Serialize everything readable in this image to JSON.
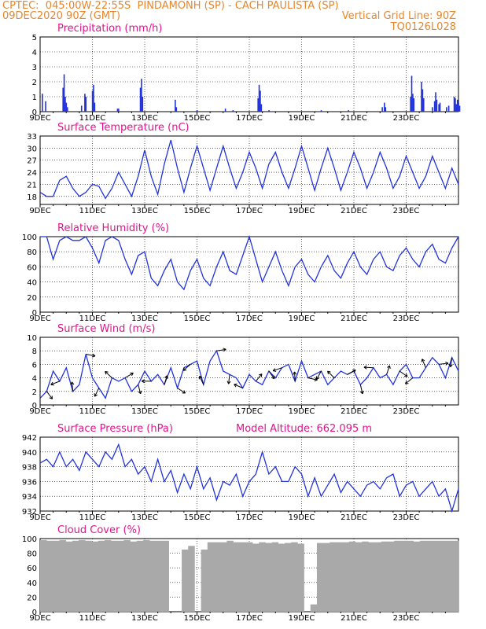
{
  "header": {
    "line1": "CPTEC:  045:00W-22:55S  PINDAMONH (SP) - CACH PAULISTA (SP)",
    "line2": "09DEC2020 90Z (GMT)",
    "grid_note": "Vertical Grid Line: 90Z",
    "code": "TQ0126L028"
  },
  "colors": {
    "header": "#e8862a",
    "title": "#e0148c",
    "line": "#2233dd",
    "cloud": "#a9a9a9"
  },
  "chart_data": [
    {
      "id": "precip",
      "type": "bar",
      "title": "Precipitation (mm/h)",
      "ylim": [
        0,
        5
      ],
      "yticks": [
        "0",
        "1",
        "2",
        "3",
        "4",
        "5"
      ],
      "xticks": [
        "9DEC",
        "11DEC",
        "13DEC",
        "15DEC",
        "17DEC",
        "19DEC",
        "21DEC",
        "23DEC"
      ],
      "x_range_hours": [
        0,
        360
      ],
      "points": [
        [
          2,
          1.2
        ],
        [
          5,
          0.7
        ],
        [
          21,
          1.6
        ],
        [
          22,
          2.5
        ],
        [
          23,
          1.0
        ],
        [
          24,
          0.6
        ],
        [
          25,
          0.3
        ],
        [
          38,
          0.4
        ],
        [
          41,
          1.2
        ],
        [
          42,
          1.0
        ],
        [
          48,
          1.4
        ],
        [
          49,
          1.8
        ],
        [
          50,
          0.6
        ],
        [
          71,
          0.2
        ],
        [
          72,
          0.2
        ],
        [
          92,
          1.6
        ],
        [
          93,
          2.2
        ],
        [
          94,
          1.0
        ],
        [
          124,
          0.8
        ],
        [
          125,
          0.3
        ],
        [
          144,
          0.1
        ],
        [
          170,
          0.2
        ],
        [
          177,
          0.1
        ],
        [
          200,
          0.9
        ],
        [
          201,
          1.8
        ],
        [
          202,
          1.4
        ],
        [
          203,
          0.5
        ],
        [
          210,
          0.1
        ],
        [
          258,
          0.1
        ],
        [
          283,
          0.1
        ],
        [
          314,
          0.3
        ],
        [
          316,
          0.6
        ],
        [
          317,
          0.3
        ],
        [
          340,
          1.0
        ],
        [
          341,
          2.4
        ],
        [
          342,
          1.2
        ],
        [
          343,
          0.9
        ],
        [
          350,
          2.0
        ],
        [
          351,
          1.5
        ],
        [
          352,
          0.9
        ],
        [
          360,
          0.3
        ],
        [
          362,
          0.7
        ],
        [
          363,
          1.3
        ],
        [
          364,
          0.8
        ],
        [
          366,
          0.5
        ],
        [
          367,
          0.6
        ],
        [
          373,
          0.3
        ],
        [
          375,
          0.4
        ],
        [
          380,
          1.0
        ],
        [
          381,
          0.9
        ],
        [
          382,
          0.5
        ],
        [
          383,
          0.8
        ],
        [
          384,
          0.6
        ],
        [
          385,
          0.4
        ]
      ]
    },
    {
      "id": "temp",
      "type": "line",
      "title": "Surface Temperature (nC)",
      "ylim": [
        16,
        33
      ],
      "ytick_values": [
        18,
        21,
        24,
        27,
        30,
        33
      ],
      "yticks": [
        "18",
        "21",
        "24",
        "27",
        "30",
        "33"
      ],
      "xticks": [
        "9DEC",
        "11DEC",
        "13DEC",
        "15DEC",
        "17DEC",
        "19DEC",
        "21DEC",
        "23DEC"
      ],
      "x": [
        0,
        6,
        12,
        18,
        24,
        30,
        36,
        42,
        48,
        54,
        60,
        66,
        72,
        78,
        84,
        90,
        96,
        102,
        108,
        114,
        120,
        126,
        132,
        138,
        144,
        150,
        156,
        162,
        168,
        174,
        180,
        186,
        192,
        198,
        204,
        210,
        216,
        222,
        228,
        234,
        240,
        246,
        252,
        258,
        264,
        270,
        276,
        282,
        288,
        294,
        300,
        306,
        312,
        318,
        324,
        330,
        336,
        342,
        348,
        354,
        360,
        366,
        372,
        378,
        384
      ],
      "y": [
        19,
        18,
        18,
        22,
        23,
        20,
        18,
        19,
        21,
        20.5,
        17.5,
        20,
        24,
        21,
        18,
        23,
        29.5,
        23,
        18.5,
        26,
        32,
        25,
        19,
        25,
        30.5,
        25,
        19.5,
        25,
        30.5,
        25,
        20,
        24,
        29,
        25,
        20,
        26,
        29,
        24,
        20,
        25,
        30.5,
        25,
        19.5,
        25,
        30,
        25,
        19.5,
        24,
        29,
        25,
        20,
        24,
        29,
        25,
        20,
        23,
        28,
        24,
        20,
        23,
        28,
        24,
        20,
        25,
        21
      ]
    },
    {
      "id": "rh",
      "type": "line",
      "title": "Relative Humidity (%)",
      "ylim": [
        0,
        100
      ],
      "yticks": [
        "0",
        "20",
        "40",
        "60",
        "80",
        "100"
      ],
      "xticks": [
        "9DEC",
        "11DEC",
        "13DEC",
        "15DEC",
        "17DEC",
        "19DEC",
        "21DEC",
        "23DEC"
      ],
      "x": [
        0,
        6,
        12,
        18,
        24,
        30,
        36,
        42,
        48,
        54,
        60,
        66,
        72,
        78,
        84,
        90,
        96,
        102,
        108,
        114,
        120,
        126,
        132,
        138,
        144,
        150,
        156,
        162,
        168,
        174,
        180,
        186,
        192,
        198,
        204,
        210,
        216,
        222,
        228,
        234,
        240,
        246,
        252,
        258,
        264,
        270,
        276,
        282,
        288,
        294,
        300,
        306,
        312,
        318,
        324,
        330,
        336,
        342,
        348,
        354,
        360,
        366,
        372,
        378,
        384
      ],
      "y": [
        100,
        100,
        70,
        95,
        100,
        95,
        95,
        100,
        85,
        65,
        95,
        100,
        95,
        70,
        50,
        75,
        80,
        45,
        35,
        55,
        70,
        40,
        30,
        55,
        70,
        45,
        35,
        60,
        80,
        55,
        50,
        75,
        100,
        70,
        40,
        60,
        80,
        55,
        35,
        60,
        70,
        50,
        40,
        60,
        75,
        55,
        45,
        65,
        80,
        60,
        50,
        70,
        80,
        60,
        55,
        75,
        85,
        70,
        60,
        80,
        90,
        70,
        65,
        85,
        100
      ]
    },
    {
      "id": "wind",
      "type": "line",
      "title": "Surface Wind (m/s)",
      "ylim": [
        0,
        10
      ],
      "yticks": [
        "0",
        "2",
        "4",
        "6",
        "8",
        "10"
      ],
      "xticks": [
        "9DEC",
        "11DEC",
        "13DEC",
        "15DEC",
        "17DEC",
        "19DEC",
        "21DEC",
        "23DEC"
      ],
      "x": [
        0,
        6,
        12,
        18,
        24,
        30,
        36,
        42,
        48,
        54,
        60,
        66,
        72,
        78,
        84,
        90,
        96,
        102,
        108,
        114,
        120,
        126,
        132,
        138,
        144,
        150,
        156,
        162,
        168,
        174,
        180,
        186,
        192,
        198,
        204,
        210,
        216,
        222,
        228,
        234,
        240,
        246,
        252,
        258,
        264,
        270,
        276,
        282,
        288,
        294,
        300,
        306,
        312,
        318,
        324,
        330,
        336,
        342,
        348,
        354,
        360,
        366,
        372,
        378,
        384
      ],
      "y": [
        1,
        2,
        5,
        3.5,
        5.5,
        2,
        3,
        7.5,
        4,
        2.5,
        1,
        4,
        3.5,
        4,
        2,
        3,
        5,
        3.5,
        4.5,
        3,
        5.5,
        2.5,
        5.5,
        6,
        6.5,
        3,
        6.5,
        8,
        5,
        4.5,
        4,
        2.5,
        4.5,
        3.5,
        3,
        5,
        4,
        5.5,
        6,
        3.5,
        6.5,
        4,
        4.5,
        5,
        3,
        4,
        5,
        4.5,
        5,
        3,
        4,
        5.5,
        4,
        4.5,
        3,
        5,
        6,
        4,
        4,
        5.5,
        7,
        6,
        4,
        7,
        5
      ]
    },
    {
      "id": "pres",
      "type": "line",
      "title": "Surface Pressure (hPa)",
      "annotation": "Model Altitude: 662.095 m",
      "ylim": [
        932,
        942
      ],
      "yticks": [
        "932",
        "934",
        "936",
        "938",
        "940",
        "942"
      ],
      "xticks": [
        "9DEC",
        "11DEC",
        "13DEC",
        "15DEC",
        "17DEC",
        "19DEC",
        "21DEC",
        "23DEC"
      ],
      "x": [
        0,
        6,
        12,
        18,
        24,
        30,
        36,
        42,
        48,
        54,
        60,
        66,
        72,
        78,
        84,
        90,
        96,
        102,
        108,
        114,
        120,
        126,
        132,
        138,
        144,
        150,
        156,
        162,
        168,
        174,
        180,
        186,
        192,
        198,
        204,
        210,
        216,
        222,
        228,
        234,
        240,
        246,
        252,
        258,
        264,
        270,
        276,
        282,
        288,
        294,
        300,
        306,
        312,
        318,
        324,
        330,
        336,
        342,
        348,
        354,
        360,
        366,
        372,
        378,
        384
      ],
      "y": [
        938.5,
        939,
        938,
        940,
        938,
        939,
        937.5,
        940,
        939,
        938,
        940,
        939,
        941,
        938,
        939,
        937,
        938,
        936,
        939,
        936,
        937.5,
        934.5,
        937,
        935,
        938,
        935,
        936.5,
        933.5,
        936,
        935.5,
        937,
        934,
        936,
        937,
        940,
        937,
        938,
        936,
        936,
        938,
        937,
        934,
        936.5,
        934,
        935.5,
        937,
        934.5,
        936,
        935,
        934,
        935.5,
        936,
        935,
        936.5,
        937,
        934,
        935.5,
        936,
        934,
        935,
        936,
        934,
        935,
        932,
        935
      ]
    },
    {
      "id": "cloud",
      "type": "bar",
      "title": "Cloud Cover (%)",
      "ylim": [
        0,
        100
      ],
      "yticks": [
        "0",
        "20",
        "40",
        "60",
        "80",
        "100"
      ],
      "xticks": [
        "9DEC",
        "11DEC",
        "13DEC",
        "15DEC",
        "17DEC",
        "19DEC",
        "21DEC",
        "23DEC"
      ],
      "x": [
        0,
        6,
        12,
        18,
        24,
        30,
        36,
        42,
        48,
        54,
        60,
        66,
        72,
        78,
        84,
        90,
        96,
        102,
        108,
        114,
        120,
        126,
        132,
        138,
        144,
        150,
        156,
        162,
        168,
        174,
        180,
        186,
        192,
        198,
        204,
        210,
        216,
        222,
        228,
        234,
        240,
        246,
        252,
        258,
        264,
        270,
        276,
        282,
        288,
        294,
        300,
        306,
        312,
        318,
        324,
        330,
        336,
        342,
        348,
        354,
        360,
        366,
        372,
        378,
        384
      ],
      "y": [
        98,
        97,
        97,
        98,
        96,
        97,
        98,
        97,
        96,
        97,
        98,
        97,
        97,
        98,
        96,
        97,
        98,
        97,
        97,
        97,
        0,
        0,
        85,
        90,
        0,
        85,
        95,
        95,
        95,
        97,
        95,
        95,
        95,
        93,
        95,
        94,
        95,
        93,
        94,
        95,
        93,
        0,
        10,
        94,
        94,
        95,
        95,
        95,
        96,
        95,
        96,
        95,
        95,
        96,
        96,
        97,
        97,
        97,
        96,
        97,
        97,
        97,
        97,
        97,
        97
      ]
    }
  ]
}
